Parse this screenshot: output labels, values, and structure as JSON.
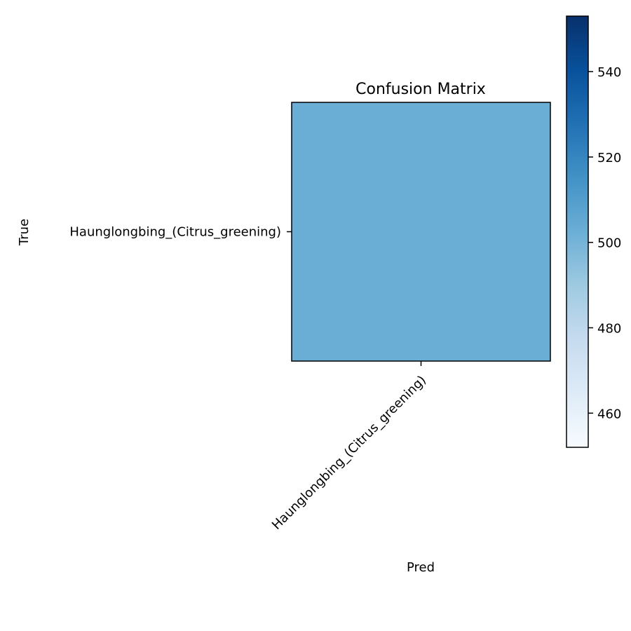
{
  "chart_data": {
    "type": "heatmap",
    "title": "Confusion Matrix",
    "xlabel": "Pred",
    "ylabel": "True",
    "x_categories": [
      "Haunglongbing_(Citrus_greening)"
    ],
    "y_categories": [
      "Haunglongbing_(Citrus_greening)"
    ],
    "values": [
      [
        503
      ]
    ],
    "colormap": "Blues",
    "color_range": [
      452,
      553
    ],
    "colorbar_ticks": [
      460,
      480,
      500,
      520,
      540
    ],
    "colors": {
      "cell": "#6aadd5",
      "colormap_low": "#f7fbff",
      "colormap_high": "#08306b"
    },
    "grid": false
  }
}
